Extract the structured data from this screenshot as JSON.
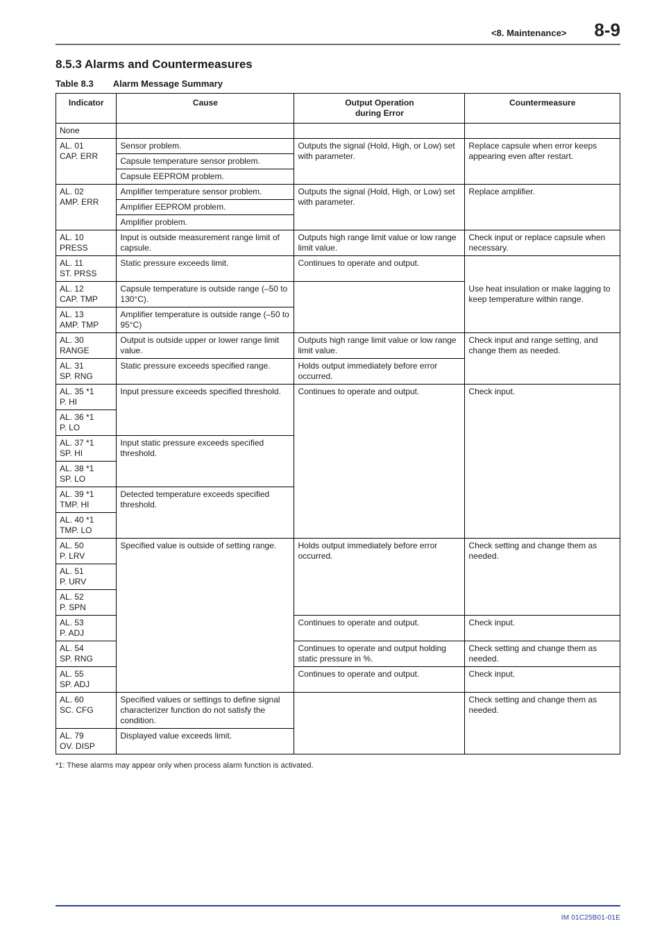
{
  "header": {
    "chapter": "<8.  Maintenance>",
    "page_number": "8-9"
  },
  "section_heading": "8.5.3   Alarms and Countermeasures",
  "table_caption_label": "Table 8.3",
  "table_caption_title": "Alarm Message Summary",
  "columns": {
    "indicator": "Indicator",
    "cause": "Cause",
    "output": "Output Operation\nduring Error",
    "counter": "Countermeasure"
  },
  "footnote": "*1: These alarms may appear only when process alarm function is activated.",
  "doc_id": "IM 01C25B01-01E",
  "colors": {
    "rule": "#6b6b6b",
    "footer_rule": "#2a3e9e",
    "docid": "#2a3e9e"
  },
  "rows": {
    "none": "None",
    "al01_ind": "AL. 01\nCAP. ERR",
    "al01_c1": "Sensor problem.",
    "al01_c2": "Capsule temperature sensor problem.",
    "al01_c3": "Capsule EEPROM problem.",
    "al01_out": "Outputs the signal (Hold, High, or Low) set with parameter.",
    "al01_cm": "Replace capsule when error keeps appearing even after restart.",
    "al02_ind": "AL. 02\nAMP. ERR",
    "al02_c1": "Amplifier temperature sensor problem.",
    "al02_c2": "Amplifier EEPROM problem.",
    "al02_c3": "Amplifier problem.",
    "al02_out": "Outputs the signal (Hold, High, or Low) set with parameter.",
    "al02_cm": "Replace amplifier.",
    "al10_ind": "AL. 10\nPRESS",
    "al10_cause": "Input is outside measurement range limit of capsule.",
    "al10_out": "Outputs high range limit value or low range limit value.",
    "al10_cm": "Check input or replace capsule when necessary.",
    "al11_ind": "AL. 11\nST. PRSS",
    "al11_cause": "Static pressure exceeds limit.",
    "al11_out": "Continues to operate and output.",
    "al12_ind": "AL. 12\nCAP. TMP",
    "al12_cause": "Capsule temperature is outside range (–50 to 130°C).",
    "al12_cm": "Use heat insulation or make lagging to keep temperature within range.",
    "al13_ind": "AL. 13\nAMP. TMP",
    "al13_cause": "Amplifier temperature is outside range (–50 to 95°C)",
    "al30_ind": "AL. 30\nRANGE",
    "al30_cause": "Output is outside upper or lower range limit value.",
    "al30_out": "Outputs high range limit value or low range limit value.",
    "al30_cm": "Check input and range setting, and change them as needed.",
    "al31_ind": "AL. 31\nSP. RNG",
    "al31_cause": "Static pressure exceeds specified range.",
    "al31_out": "Holds output immediately before error occurred.",
    "al35_ind": "AL. 35 *1\nP. HI",
    "al35_cause": "Input pressure exceeds specified threshold.",
    "al35_out": "Continues to operate and output.",
    "al35_cm": "Check input.",
    "al36_ind": "AL. 36 *1\nP. LO",
    "al37_ind": "AL. 37 *1\nSP. HI",
    "al37_cause": "Input static pressure exceeds specified threshold.",
    "al38_ind": "AL. 38 *1\nSP. LO",
    "al39_ind": "AL. 39 *1\nTMP. HI",
    "al39_cause": "Detected temperature exceeds specified threshold.",
    "al40_ind": "AL. 40 *1\nTMP. LO",
    "al50_ind": "AL. 50\nP. LRV",
    "al50_cause": "Specified value is outside of setting range.",
    "al50_out": "Holds output immediately before error occurred.",
    "al50_cm": "Check setting and change them as needed.",
    "al51_ind": "AL. 51\nP. URV",
    "al52_ind": "AL. 52\nP. SPN",
    "al53_ind": "AL. 53\nP. ADJ",
    "al53_out": "Continues to operate and output.",
    "al53_cm": "Check input.",
    "al54_ind": "AL. 54\nSP. RNG",
    "al54_out": "Continues to operate and output holding static pressure in %.",
    "al54_cm": "Check setting and change them as needed.",
    "al55_ind": "AL. 55\nSP. ADJ",
    "al55_out": "Continues to operate and output.",
    "al55_cm": "Check input.",
    "al60_ind": "AL. 60\nSC. CFG",
    "al60_cause": "Specified values or settings to define signal characterizer function do not satisfy the condition.",
    "al60_cm": "Check setting and change them as needed.",
    "al79_ind": "AL. 79\nOV. DISP",
    "al79_cause": "Displayed value exceeds limit."
  }
}
